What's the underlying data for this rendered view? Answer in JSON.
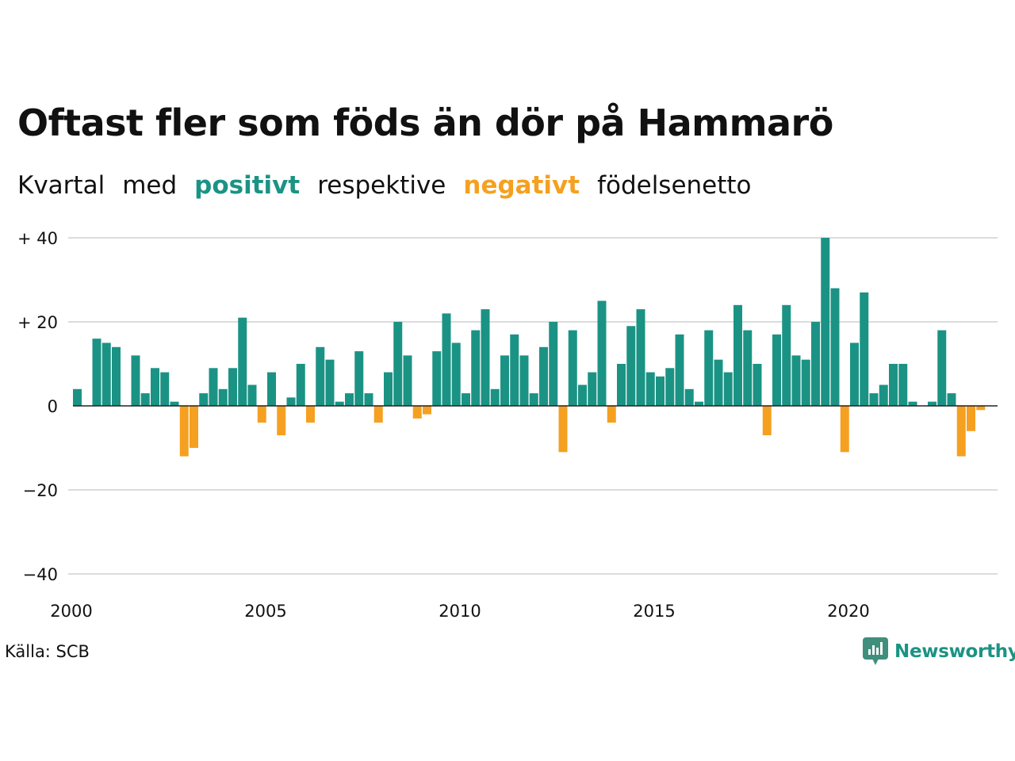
{
  "title": "Oftast fler som föds än dör på Hammarö",
  "subtitle": {
    "part1": "Kvartal",
    "part2": "med",
    "positive": "positivt",
    "part3": "respektive",
    "negative": "negativt",
    "part4": "födelsenetto"
  },
  "colors": {
    "positive": "#1b9384",
    "negative": "#f5a020",
    "grid": "#dcdcdc",
    "text": "#111111"
  },
  "source": "Källa: SCB",
  "brand": "Newsworthy",
  "chart_data": {
    "type": "bar",
    "xlabel": "",
    "ylabel": "",
    "x_range": [
      2000,
      2023.75
    ],
    "ylim": [
      -40,
      40
    ],
    "y_ticks": [
      {
        "value": 40,
        "label": "+ 40"
      },
      {
        "value": 20,
        "label": "+ 20"
      },
      {
        "value": 0,
        "label": "0"
      },
      {
        "value": -20,
        "label": "−20"
      },
      {
        "value": -40,
        "label": "−40"
      }
    ],
    "x_ticks": [
      {
        "value": 2000,
        "label": "2000"
      },
      {
        "value": 2005,
        "label": "2005"
      },
      {
        "value": 2010,
        "label": "2010"
      },
      {
        "value": 2015,
        "label": "2015"
      },
      {
        "value": 2020,
        "label": "2020"
      }
    ],
    "grid": true,
    "start_quarter": "2000 Q1",
    "values": [
      4,
      0,
      16,
      15,
      14,
      0,
      12,
      3,
      9,
      8,
      1,
      -12,
      -10,
      3,
      9,
      4,
      9,
      21,
      5,
      -4,
      8,
      -7,
      2,
      10,
      -4,
      14,
      11,
      1,
      3,
      13,
      3,
      -4,
      8,
      20,
      12,
      -3,
      -2,
      13,
      22,
      15,
      3,
      18,
      23,
      4,
      12,
      17,
      12,
      3,
      14,
      20,
      -11,
      18,
      5,
      8,
      25,
      -4,
      10,
      19,
      23,
      8,
      7,
      9,
      17,
      4,
      1,
      18,
      11,
      8,
      24,
      18,
      10,
      -7,
      17,
      24,
      12,
      11,
      20,
      40,
      28,
      -11,
      15,
      27,
      3,
      5,
      10,
      10,
      1,
      0,
      1,
      18,
      3,
      -12,
      -6,
      -1
    ]
  }
}
